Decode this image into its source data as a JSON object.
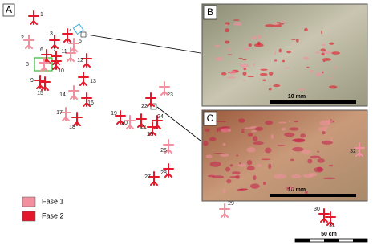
{
  "panel_labels": [
    "A",
    "B",
    "C"
  ],
  "figure_labels": [
    "1",
    "2",
    "3",
    "4",
    "5",
    "6",
    "7",
    "8",
    "9",
    "10",
    "11",
    "12",
    "13",
    "14",
    "15",
    "16",
    "17",
    "18",
    "19",
    "20",
    "21",
    "22",
    "23",
    "24",
    "25",
    "26",
    "27",
    "28",
    "29",
    "30",
    "31",
    "32"
  ],
  "legend": [
    {
      "label": "Fase 1",
      "color": "#f2909f"
    },
    {
      "label": "Fase 2",
      "color": "#e3182a"
    }
  ],
  "scale_bars": [
    "10 mm",
    "10 mm",
    "50 cm"
  ]
}
